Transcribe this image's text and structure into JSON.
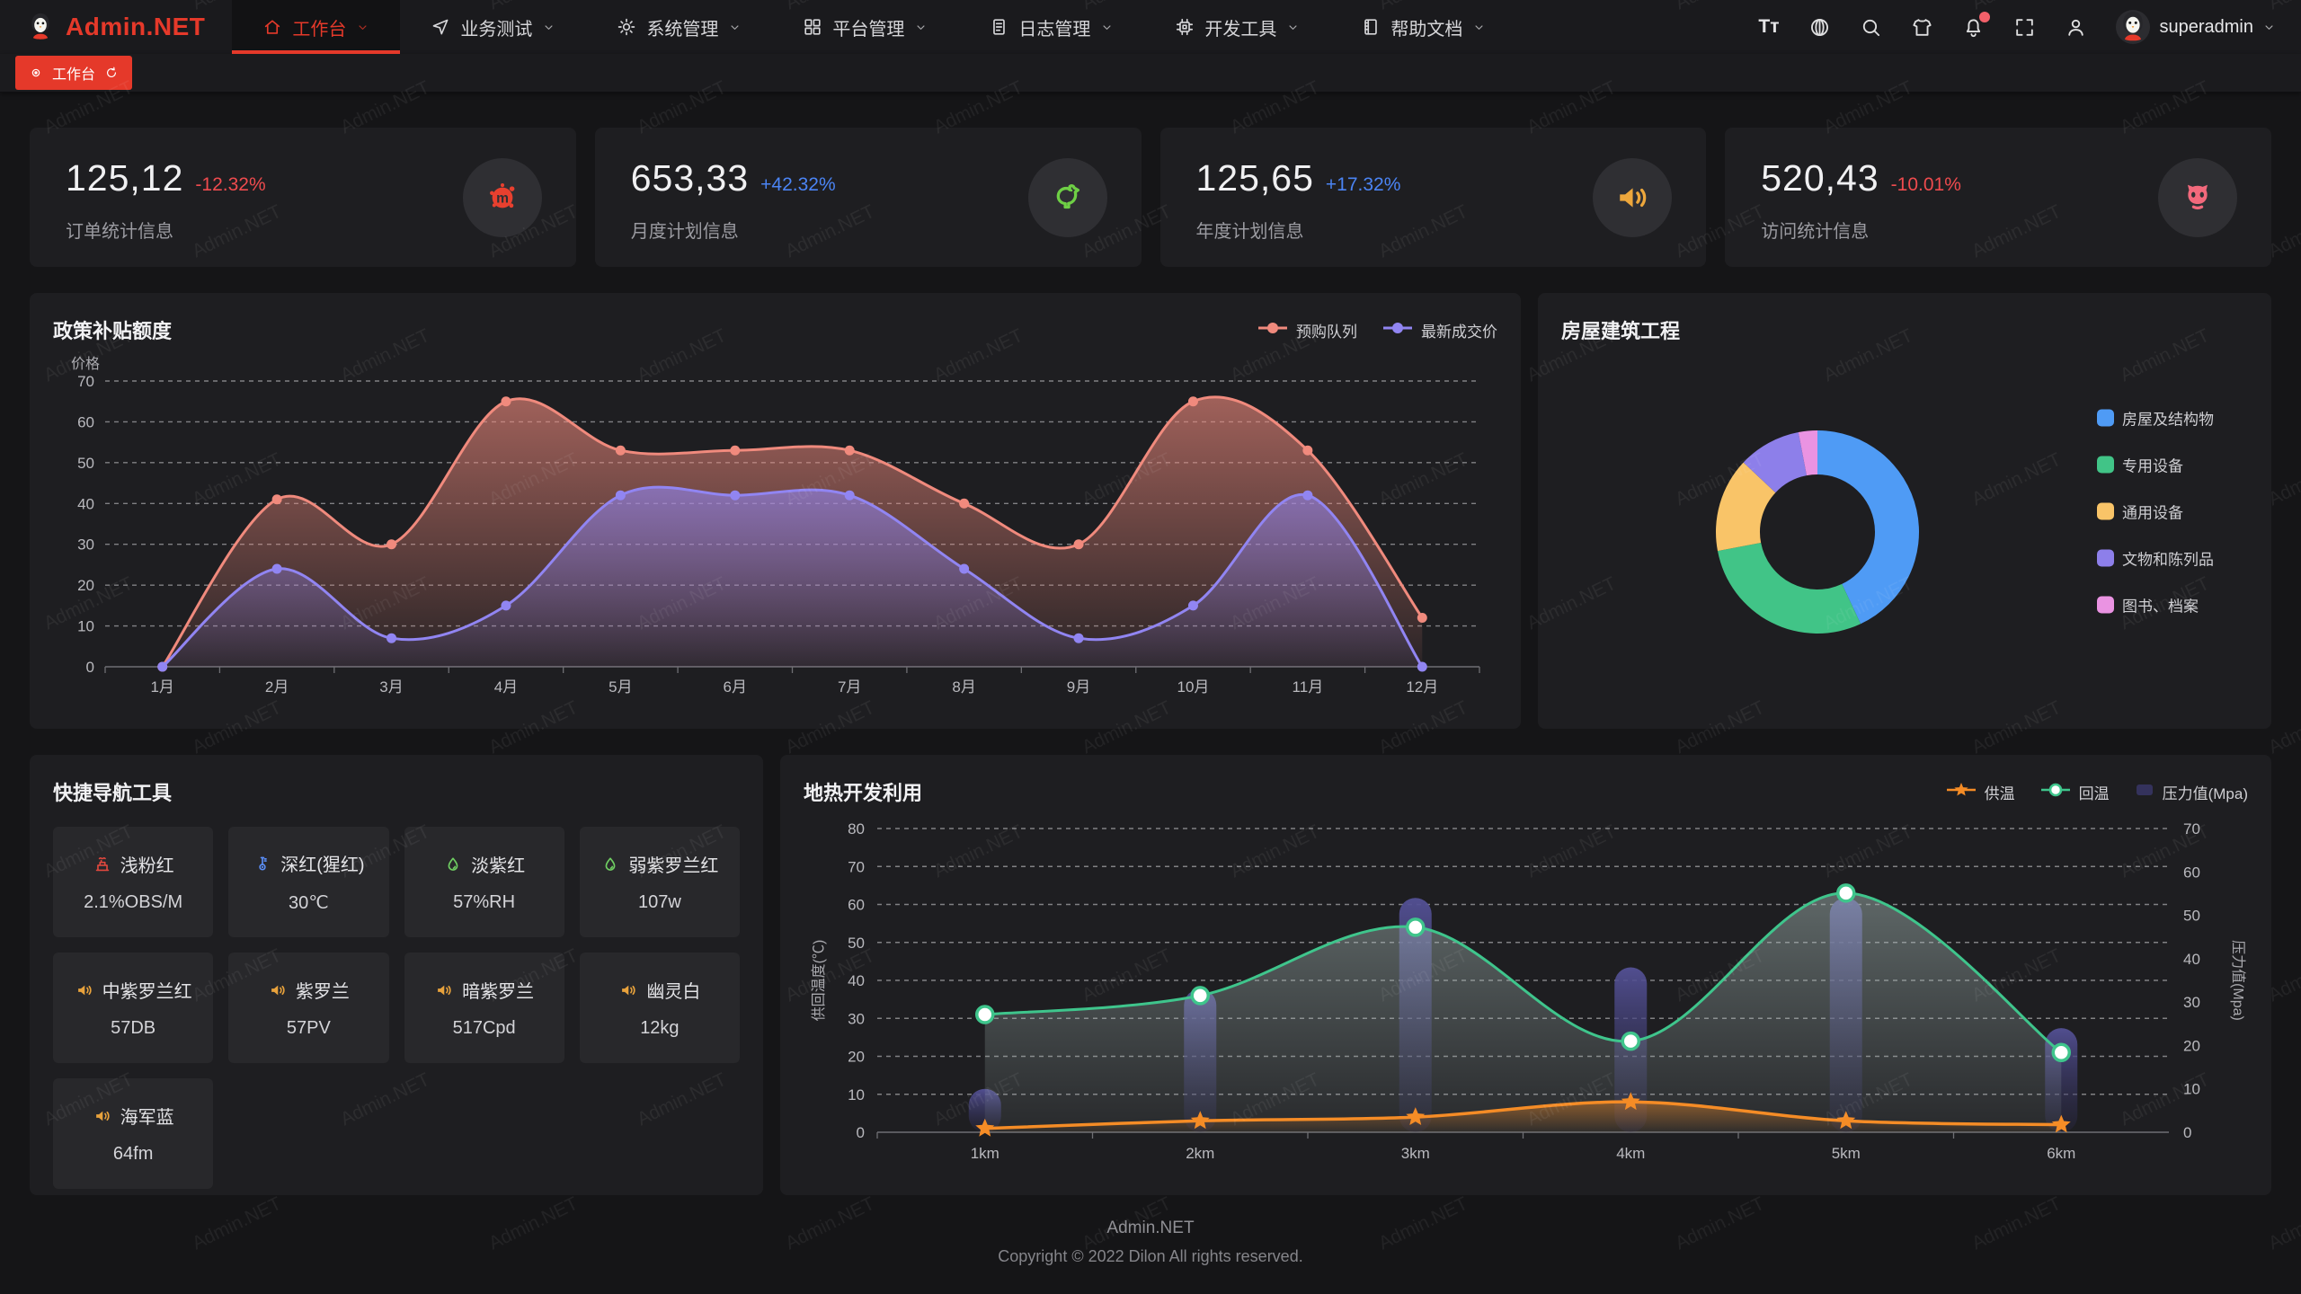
{
  "topbar": {
    "logo_text": "Admin.NET",
    "menu": [
      {
        "id": "workbench",
        "label": "工作台",
        "icon": "home",
        "active": true
      },
      {
        "id": "business-test",
        "label": "业务测试",
        "icon": "navigation",
        "active": false
      },
      {
        "id": "system-manage",
        "label": "系统管理",
        "icon": "gear",
        "active": false
      },
      {
        "id": "platform-manage",
        "label": "平台管理",
        "icon": "grid",
        "active": false
      },
      {
        "id": "log-manage",
        "label": "日志管理",
        "icon": "document",
        "active": false
      },
      {
        "id": "dev-tools",
        "label": "开发工具",
        "icon": "cpu",
        "active": false
      },
      {
        "id": "help-docs",
        "label": "帮助文档",
        "icon": "book",
        "active": false
      }
    ],
    "tools": [
      {
        "id": "font-size",
        "icon": "font",
        "badge": false
      },
      {
        "id": "language",
        "icon": "language",
        "badge": false
      },
      {
        "id": "search",
        "icon": "search",
        "badge": false
      },
      {
        "id": "theme",
        "icon": "tshirt",
        "badge": false
      },
      {
        "id": "notification",
        "icon": "bell",
        "badge": true
      },
      {
        "id": "fullscreen",
        "icon": "fullscreen",
        "badge": false
      },
      {
        "id": "profile",
        "icon": "person",
        "badge": false
      }
    ],
    "user": {
      "name": "superadmin"
    }
  },
  "tabbar": {
    "tabs": [
      {
        "label": "工作台",
        "active": true
      }
    ]
  },
  "stat_cards": [
    {
      "value": "125,12",
      "delta": "-12.32%",
      "trend": "down",
      "label": "订单统计信息",
      "icon": "paint-splash",
      "icon_color": "#e8402f"
    },
    {
      "value": "653,33",
      "delta": "+42.32%",
      "trend": "up",
      "label": "月度计划信息",
      "icon": "rooster",
      "icon_color": "#6ecf45"
    },
    {
      "value": "125,65",
      "delta": "+17.32%",
      "trend": "up",
      "label": "年度计划信息",
      "icon": "horn",
      "icon_color": "#eda73c"
    },
    {
      "value": "520,43",
      "delta": "-10.01%",
      "trend": "down",
      "label": "访问统计信息",
      "icon": "cat",
      "icon_color": "#f2697c"
    }
  ],
  "chart_data": [
    {
      "id": "subsidy",
      "type": "line",
      "title": "政策补贴额度",
      "ylabel": "价格",
      "categories": [
        "1月",
        "2月",
        "3月",
        "4月",
        "5月",
        "6月",
        "7月",
        "8月",
        "9月",
        "10月",
        "11月",
        "12月"
      ],
      "ylim": [
        0,
        70
      ],
      "yticks": [
        0,
        10,
        20,
        30,
        40,
        50,
        60,
        70
      ],
      "grid": "dashed",
      "legend_position": "top-right",
      "series": [
        {
          "name": "预购队列",
          "color": "#f08a7d",
          "values": [
            0,
            41,
            30,
            65,
            53,
            53,
            53,
            40,
            30,
            65,
            53,
            12
          ]
        },
        {
          "name": "最新成交价",
          "color": "#9185f2",
          "values": [
            0,
            24,
            7,
            15,
            42,
            42,
            42,
            24,
            7,
            15,
            42,
            0
          ]
        }
      ]
    },
    {
      "id": "building",
      "type": "pie",
      "title": "房屋建筑工程",
      "labels": [
        "房屋及结构物",
        "专用设备",
        "通用设备",
        "文物和陈列品",
        "图书、档案"
      ],
      "values": [
        43,
        29,
        15,
        10,
        3
      ],
      "colors": [
        "#4f9bf5",
        "#41c487",
        "#f9c468",
        "#8d7fea",
        "#ea93e2"
      ],
      "legend_position": "right"
    },
    {
      "id": "geothermal",
      "type": "mixed",
      "title": "地热开发利用",
      "categories": [
        "1km",
        "2km",
        "3km",
        "4km",
        "5km",
        "6km"
      ],
      "ylabel_left": "供回温度(℃)",
      "ylabel_right": "压力值(Mpa)",
      "ylim_left": [
        0,
        80
      ],
      "ylim_right": [
        0,
        70
      ],
      "grid": "dashed",
      "series": [
        {
          "name": "供温",
          "type": "line",
          "marker": "star",
          "axis": "left",
          "color": "#f58c26",
          "values": [
            1,
            3,
            4,
            8,
            3,
            2
          ]
        },
        {
          "name": "回温",
          "type": "line",
          "marker": "circle",
          "axis": "left",
          "color": "#3fc58c",
          "values": [
            31,
            36,
            54,
            24,
            63,
            21
          ]
        },
        {
          "name": "压力值(Mpa)",
          "type": "bar",
          "axis": "right",
          "color": "#4c4a85",
          "values": [
            10,
            33,
            54,
            38,
            54,
            24
          ]
        }
      ]
    }
  ],
  "quick_nav": {
    "title": "快捷导航工具",
    "items": [
      {
        "label": "浅粉红",
        "value": "2.1%OBS/M",
        "icon": "factory",
        "icon_color": "#e0483e"
      },
      {
        "label": "深红(猩红)",
        "value": "30℃",
        "icon": "thermometer",
        "icon_color": "#5b8ff9"
      },
      {
        "label": "淡紫红",
        "value": "57%RH",
        "icon": "droplet",
        "icon_color": "#6fce62"
      },
      {
        "label": "弱紫罗兰红",
        "value": "107w",
        "icon": "droplet",
        "icon_color": "#6fce62"
      },
      {
        "label": "中紫罗兰红",
        "value": "57DB",
        "icon": "horn",
        "icon_color": "#e8a23c"
      },
      {
        "label": "紫罗兰",
        "value": "57PV",
        "icon": "horn",
        "icon_color": "#e8a23c"
      },
      {
        "label": "暗紫罗兰",
        "value": "517Cpd",
        "icon": "horn",
        "icon_color": "#e8a23c"
      },
      {
        "label": "幽灵白",
        "value": "12kg",
        "icon": "horn",
        "icon_color": "#e8a23c"
      },
      {
        "label": "海军蓝",
        "value": "64fm",
        "icon": "horn",
        "icon_color": "#e8a23c"
      }
    ]
  },
  "footer": {
    "app": "Admin.NET",
    "copyright": "Copyright © 2022 Dilon All rights reserved."
  },
  "watermark": {
    "text": "Admin.NET"
  }
}
